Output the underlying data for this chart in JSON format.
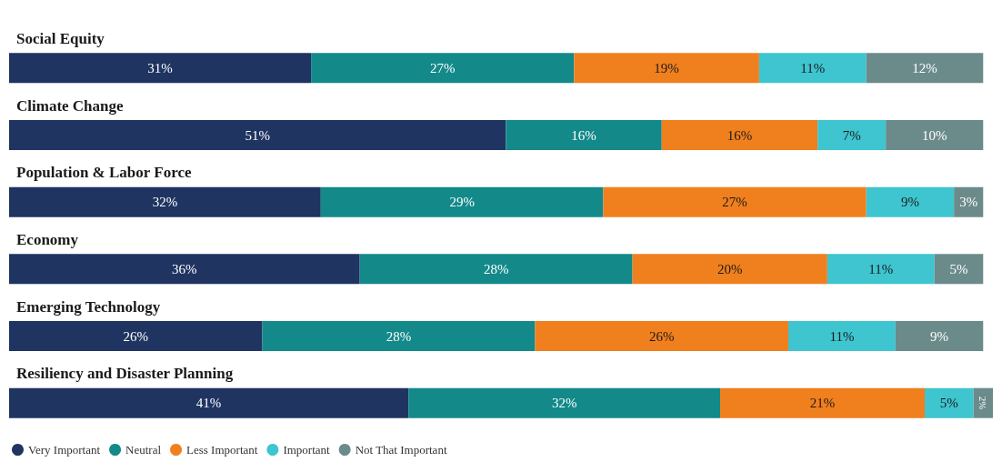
{
  "chart_data": {
    "type": "bar",
    "orientation": "horizontal",
    "stacked": true,
    "legend": "bottom left",
    "categories": [
      "Social Equity",
      "Climate Change",
      "Population & Labor Force",
      "Economy",
      "Emerging Technology",
      "Resiliency and Disaster Planning"
    ],
    "series": [
      {
        "name": "Very Important",
        "color": "#1f3461",
        "values": [
          31,
          51,
          32,
          36,
          26,
          41
        ],
        "value_labels": [
          "31%",
          "51%",
          "32%",
          "36%",
          "26%",
          "41%"
        ]
      },
      {
        "name": "Neutral",
        "color": "#13898a",
        "values": [
          27,
          16,
          29,
          28,
          28,
          32
        ],
        "value_labels": [
          "27%",
          "16%",
          "29%",
          "28%",
          "28%",
          "32%"
        ]
      },
      {
        "name": "Less Important",
        "color": "#f07f1e",
        "values": [
          19,
          16,
          27,
          20,
          26,
          21
        ],
        "value_labels": [
          "19%",
          "16%",
          "27%",
          "20%",
          "26%",
          "21%"
        ]
      },
      {
        "name": "Important",
        "color": "#3ec5cf",
        "values": [
          11,
          7,
          9,
          11,
          11,
          5
        ],
        "value_labels": [
          "11%",
          "7%",
          "9%",
          "11%",
          "11%",
          "5%"
        ]
      },
      {
        "name": "Not That Important",
        "color": "#6b8b8b",
        "values": [
          12,
          10,
          3,
          5,
          9,
          2
        ],
        "value_labels": [
          "12%",
          "10%",
          "3%",
          "5%",
          "9%",
          "2%"
        ]
      }
    ]
  }
}
